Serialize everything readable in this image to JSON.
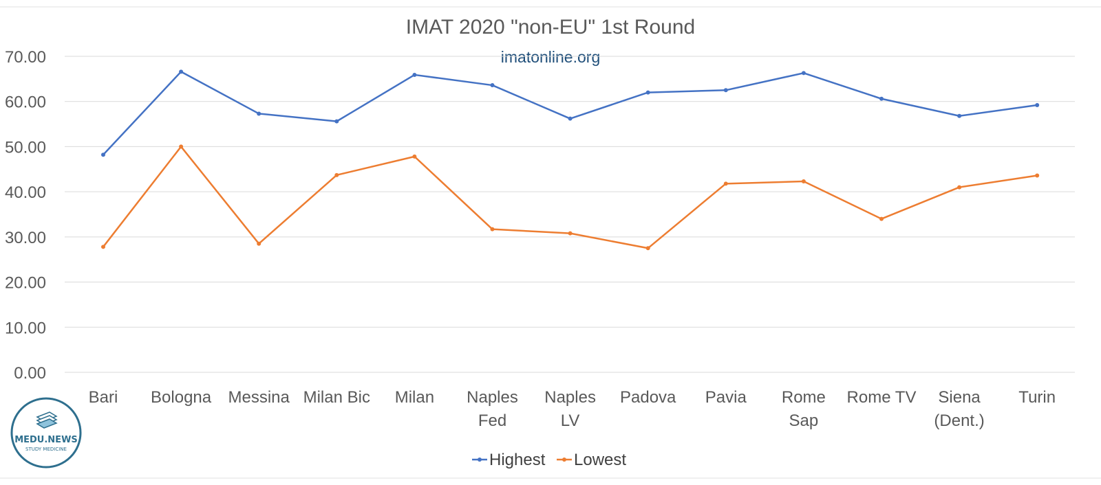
{
  "chart_data": {
    "type": "line",
    "title": "IMAT 2020 \"non-EU\" 1st Round",
    "subtitle": "imatonline.org",
    "categories": [
      [
        "Bari"
      ],
      [
        "Bologna"
      ],
      [
        "Messina"
      ],
      [
        "Milan Bic"
      ],
      [
        "Milan"
      ],
      [
        "Naples",
        "Fed"
      ],
      [
        "Naples",
        "LV"
      ],
      [
        "Padova"
      ],
      [
        "Pavia"
      ],
      [
        "Rome",
        "Sap"
      ],
      [
        "Rome TV"
      ],
      [
        "Siena",
        "(Dent.)"
      ],
      [
        "Turin"
      ]
    ],
    "series": [
      {
        "name": "Highest",
        "color": "#4472c4",
        "values": [
          48.2,
          66.6,
          57.3,
          55.6,
          65.9,
          63.6,
          56.2,
          62.0,
          62.5,
          66.3,
          60.6,
          56.8,
          59.2
        ]
      },
      {
        "name": "Lowest",
        "color": "#ed7d31",
        "values": [
          27.8,
          50.0,
          28.5,
          43.7,
          47.8,
          31.7,
          30.8,
          27.5,
          41.8,
          42.3,
          34.0,
          41.0,
          43.6
        ]
      }
    ],
    "ylim": [
      0,
      70
    ],
    "yticks": [
      "0.00",
      "10.00",
      "20.00",
      "30.00",
      "40.00",
      "50.00",
      "60.00",
      "70.00"
    ],
    "grid": true,
    "legend_position": "bottom"
  },
  "logo": {
    "name": "MEDU.NEWS",
    "tagline": "STUDY MEDICINE"
  }
}
